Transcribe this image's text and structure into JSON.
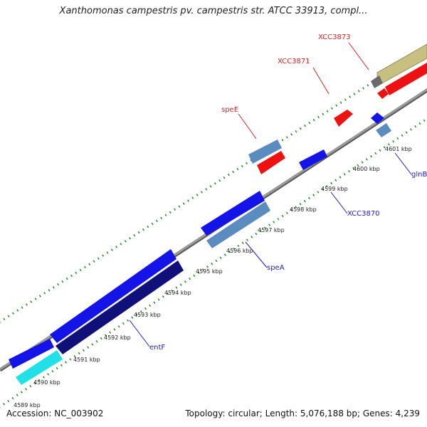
{
  "title": "Xanthomonas campestris pv. campestris str. ATCC 33913, compl...",
  "footer": {
    "accession": "Accession: NC_003902",
    "summary": "Topology: circular; Length: 5,076,188 bp; Genes: 4,239"
  },
  "ticks": [
    "4589 kbp",
    "4590 kbp",
    "4591 kbp",
    "4592 kbp",
    "4593 kbp",
    "4594 kbp",
    "4595 kbp",
    "4596 kbp",
    "4597 kbp",
    "4598 kbp",
    "4599 kbp",
    "4600 kbp",
    "4601 kbp"
  ],
  "gene_labels": {
    "forward": [
      "XCC3873",
      "XCC3871",
      "speE"
    ],
    "reverse": [
      "glnB",
      "XCC3870",
      "speA",
      "entF"
    ]
  },
  "colors": {
    "forward_label": "#dd2222",
    "reverse_label": "#1a1acc",
    "backbone": "#888888",
    "tick": "#228822",
    "blue": "#1414e8",
    "steel": "#5b8cbf",
    "navy": "#10107a",
    "cyan": "#22e0e8",
    "red": "#ee1111",
    "khaki": "#c8c080",
    "grey": "#707070"
  }
}
